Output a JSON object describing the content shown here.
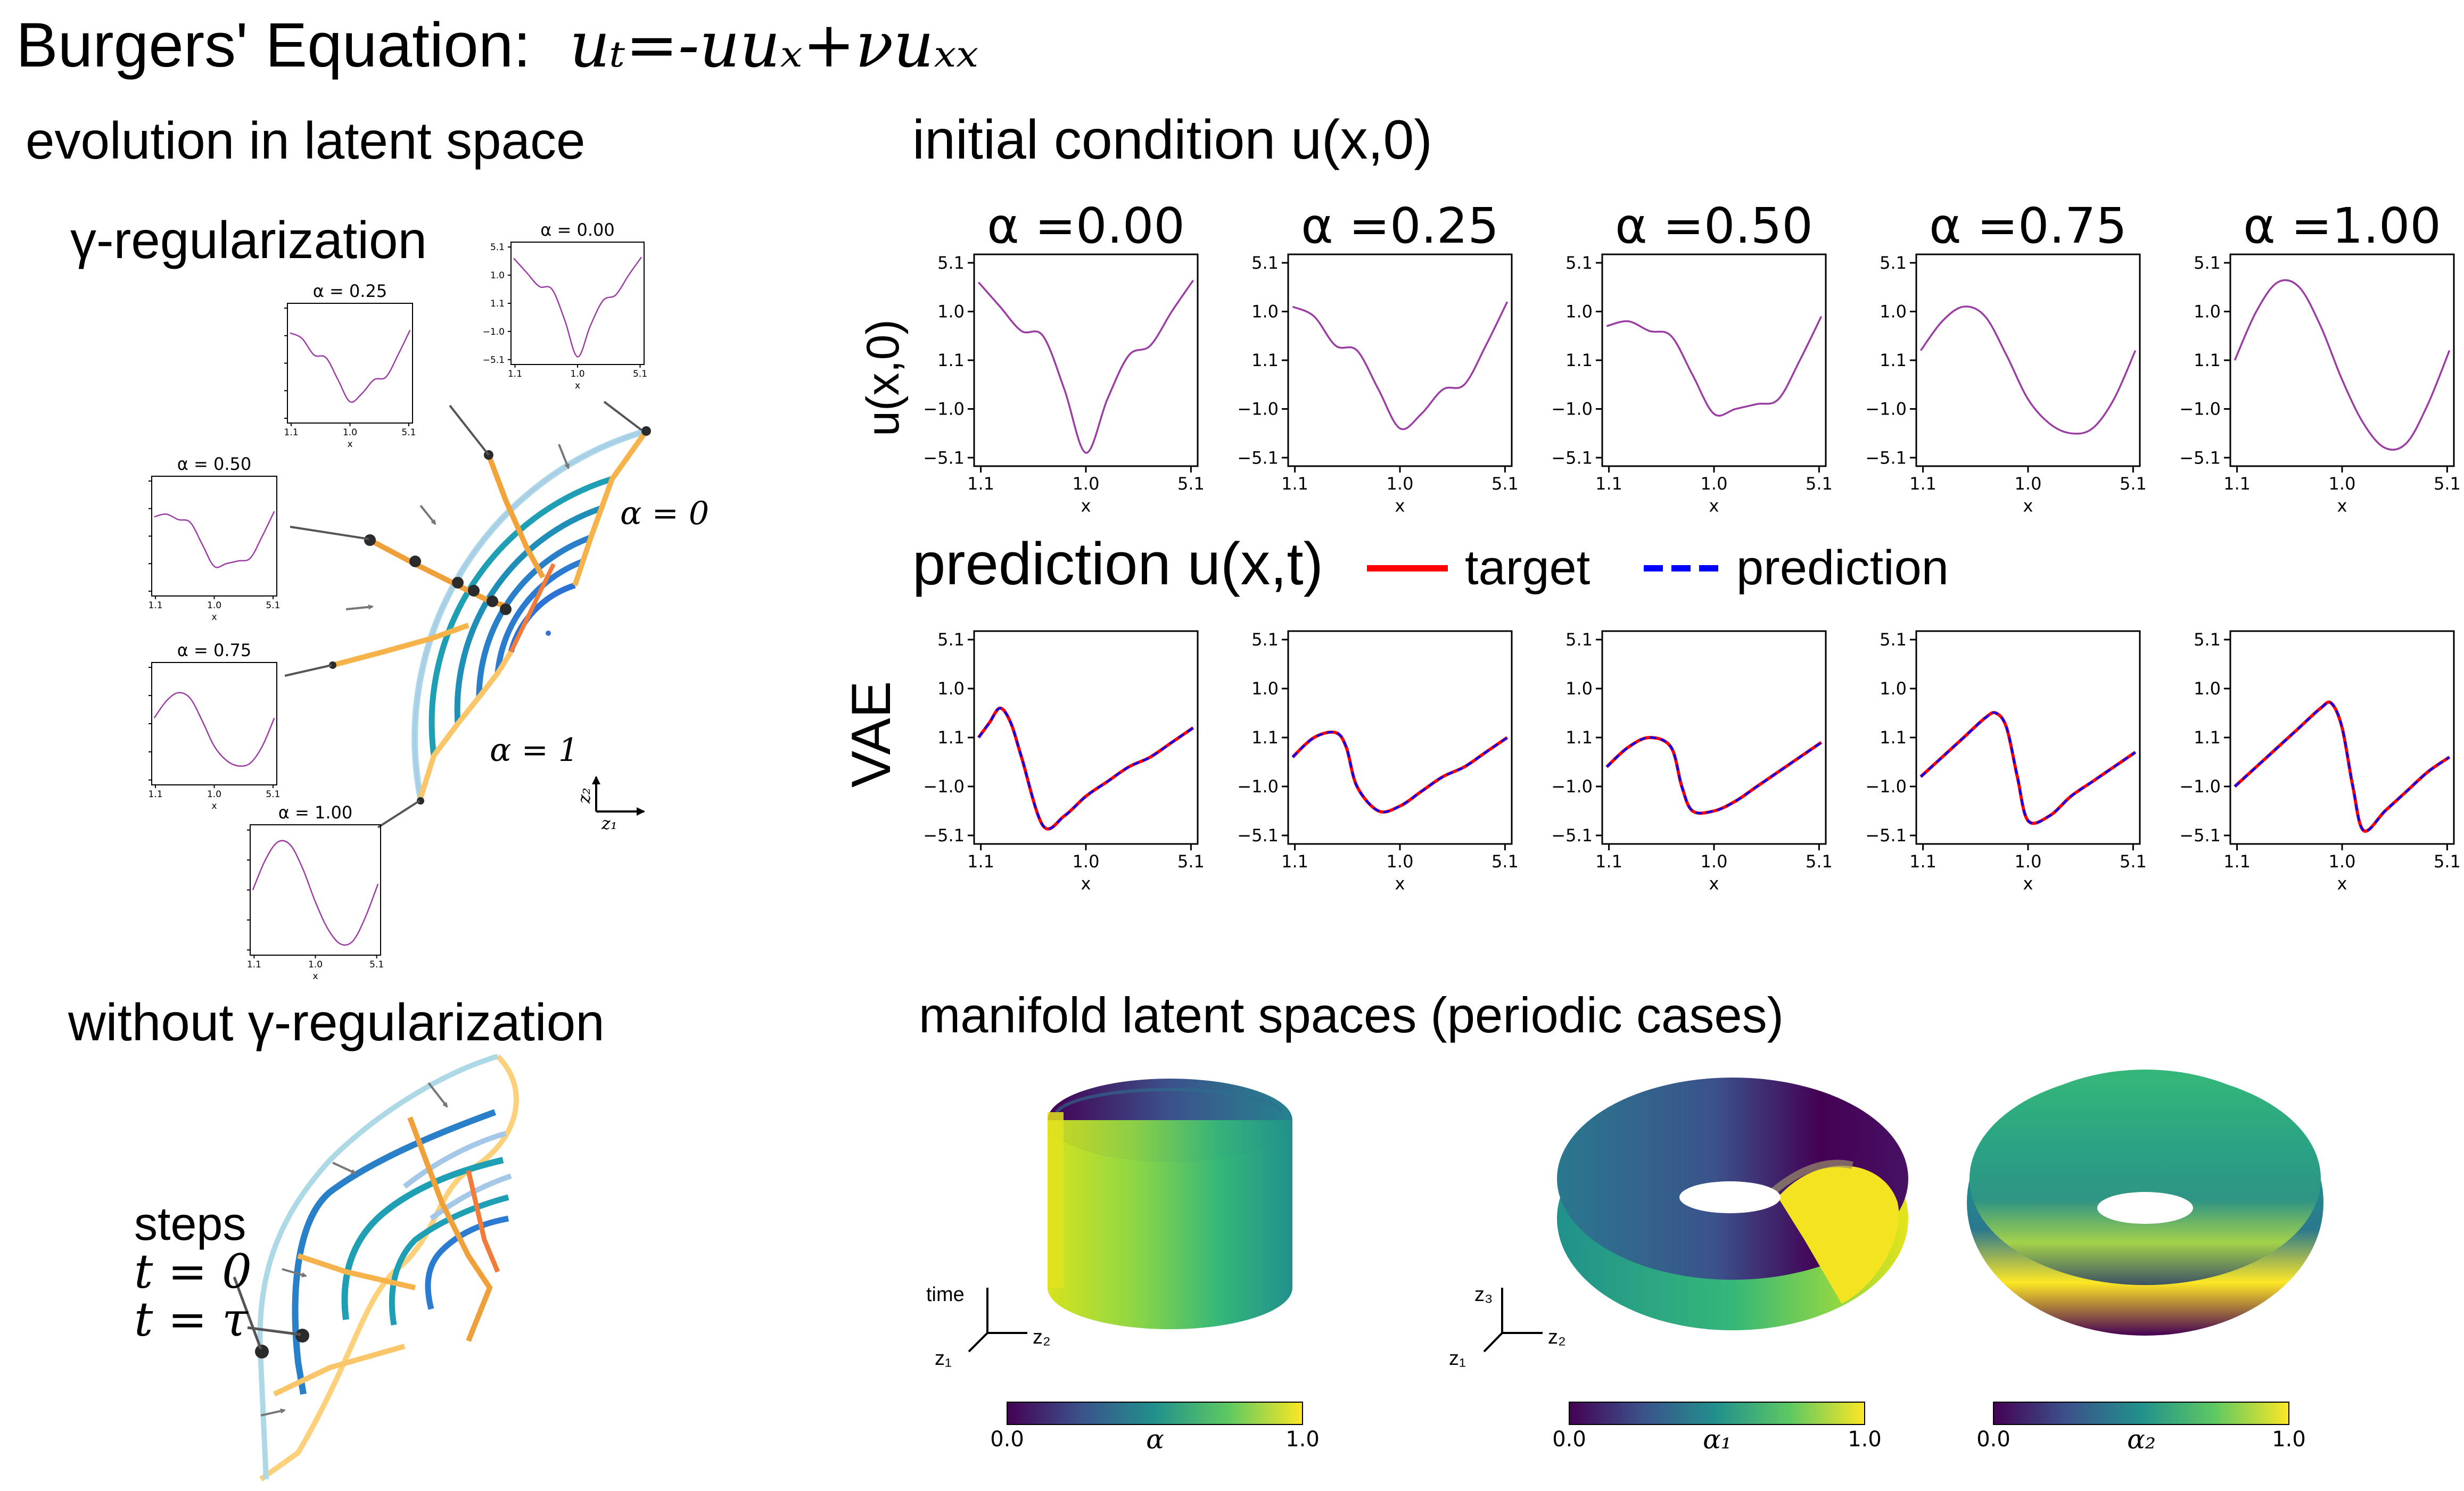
{
  "title": {
    "prefix": "Burgers' Equation:",
    "equation": "uₜ=-uuₓ+νuₓₓ"
  },
  "sections": {
    "latent_evolution": "evolution in latent space",
    "gamma_reg": "γ-regularization",
    "without_gamma": "without γ-regularization",
    "initial_condition": "initial condition u(x,0)",
    "prediction": "prediction u(x,t)",
    "manifold": "manifold latent spaces (periodic cases)"
  },
  "legend": {
    "target": "target",
    "prediction": "prediction",
    "target_color": "#ff0000",
    "prediction_color": "#0000ff"
  },
  "row_labels": {
    "initial": "u(x,0)",
    "prediction": "VAE"
  },
  "alpha_titles": [
    "α =0.00",
    "α =0.25",
    "α =0.50",
    "α =0.75",
    "α =1.00"
  ],
  "inset_titles": [
    "α = 0.00",
    "α = 0.25",
    "α = 0.50",
    "α = 0.75",
    "α = 1.00"
  ],
  "ytick_labels": [
    "5.1",
    "1.0",
    "1.1",
    "−1.0",
    "−5.1"
  ],
  "inset_ytick_labels": [
    "5.1",
    "1.0",
    "1.1",
    "−1.0",
    "−5.1"
  ],
  "xtick_labels": [
    "1.1",
    "1.0",
    "5.1"
  ],
  "xlabel": "x",
  "alpha_annotations": {
    "alpha0": "α = 0",
    "alpha1": "α = 1"
  },
  "axes_labels": {
    "z1": "z₁",
    "z2": "z₂",
    "z3": "z₃",
    "time": "time"
  },
  "steps": {
    "label": "steps",
    "t0": "t = 0",
    "ttau": "t = τ"
  },
  "colorbars": [
    {
      "label": "α",
      "min": "0.0",
      "max": "1.0"
    },
    {
      "label": "α₁",
      "min": "0.0",
      "max": "1.0"
    },
    {
      "label": "α₂",
      "min": "0.0",
      "max": "1.0"
    }
  ],
  "colors": {
    "curve": "#9b3ea3",
    "viridis": [
      "#440154",
      "#3b528b",
      "#21918c",
      "#5ec962",
      "#fde725"
    ]
  },
  "chart_data": [
    {
      "type": "line",
      "title": "initial condition u(x,0)",
      "xlabel": "x",
      "ylabel": "u(x,0)",
      "series": [
        {
          "name": "α =0.00",
          "x": [
            0,
            0.1,
            0.2,
            0.3,
            0.4,
            0.5,
            0.6,
            0.7,
            0.8,
            0.9,
            1.0
          ],
          "values": [
            0.8,
            0.55,
            0.3,
            0.25,
            -0.3,
            -0.95,
            -0.4,
            0.05,
            0.15,
            0.5,
            0.82
          ]
        },
        {
          "name": "α =0.25",
          "x": [
            0,
            0.1,
            0.2,
            0.3,
            0.4,
            0.5,
            0.6,
            0.7,
            0.8,
            0.9,
            1.0
          ],
          "values": [
            0.55,
            0.45,
            0.15,
            0.1,
            -0.3,
            -0.7,
            -0.55,
            -0.3,
            -0.25,
            0.15,
            0.6
          ]
        },
        {
          "name": "α =0.50",
          "x": [
            0,
            0.1,
            0.2,
            0.3,
            0.4,
            0.5,
            0.6,
            0.7,
            0.8,
            0.9,
            1.0
          ],
          "values": [
            0.35,
            0.4,
            0.3,
            0.25,
            -0.15,
            -0.55,
            -0.5,
            -0.45,
            -0.4,
            0.0,
            0.45
          ]
        },
        {
          "name": "α =0.75",
          "x": [
            0,
            0.1,
            0.2,
            0.3,
            0.4,
            0.5,
            0.6,
            0.7,
            0.8,
            0.9,
            1.0
          ],
          "values": [
            0.1,
            0.4,
            0.55,
            0.45,
            0.05,
            -0.4,
            -0.65,
            -0.75,
            -0.7,
            -0.4,
            0.1
          ]
        },
        {
          "name": "α =1.00",
          "x": [
            0,
            0.1,
            0.2,
            0.3,
            0.4,
            0.5,
            0.6,
            0.7,
            0.8,
            0.9,
            1.0
          ],
          "values": [
            0.0,
            0.5,
            0.8,
            0.75,
            0.35,
            -0.2,
            -0.65,
            -0.9,
            -0.85,
            -0.45,
            0.1
          ]
        }
      ]
    },
    {
      "type": "line",
      "title": "prediction u(x,t)",
      "xlabel": "x",
      "ylabel": "VAE",
      "series": [
        {
          "name": "α =0.00",
          "x": [
            0,
            0.05,
            0.1,
            0.15,
            0.2,
            0.3,
            0.4,
            0.5,
            0.6,
            0.7,
            0.8,
            0.9,
            1.0
          ],
          "values": [
            0.0,
            0.15,
            0.3,
            0.15,
            -0.2,
            -0.9,
            -0.8,
            -0.6,
            -0.45,
            -0.3,
            -0.2,
            -0.05,
            0.1
          ]
        },
        {
          "name": "α =0.25",
          "x": [
            0,
            0.1,
            0.2,
            0.25,
            0.3,
            0.4,
            0.5,
            0.6,
            0.7,
            0.8,
            0.9,
            1.0
          ],
          "values": [
            -0.2,
            0.0,
            0.05,
            -0.1,
            -0.5,
            -0.75,
            -0.7,
            -0.55,
            -0.4,
            -0.3,
            -0.15,
            0.0
          ]
        },
        {
          "name": "α =0.50",
          "x": [
            0,
            0.1,
            0.2,
            0.3,
            0.35,
            0.4,
            0.5,
            0.6,
            0.7,
            0.8,
            0.9,
            1.0
          ],
          "values": [
            -0.3,
            -0.1,
            0.0,
            -0.1,
            -0.5,
            -0.75,
            -0.75,
            -0.65,
            -0.5,
            -0.35,
            -0.2,
            -0.05
          ]
        },
        {
          "name": "α =0.75",
          "x": [
            0,
            0.1,
            0.2,
            0.3,
            0.35,
            0.4,
            0.45,
            0.5,
            0.6,
            0.7,
            0.8,
            0.9,
            1.0
          ],
          "values": [
            -0.4,
            -0.2,
            0.0,
            0.2,
            0.25,
            0.1,
            -0.4,
            -0.85,
            -0.8,
            -0.6,
            -0.45,
            -0.3,
            -0.15
          ]
        },
        {
          "name": "α =1.00",
          "x": [
            0,
            0.1,
            0.2,
            0.3,
            0.4,
            0.45,
            0.5,
            0.55,
            0.6,
            0.7,
            0.8,
            0.9,
            1.0
          ],
          "values": [
            -0.5,
            -0.3,
            -0.1,
            0.1,
            0.3,
            0.35,
            0.1,
            -0.5,
            -0.95,
            -0.75,
            -0.55,
            -0.35,
            -0.2
          ]
        }
      ]
    }
  ]
}
